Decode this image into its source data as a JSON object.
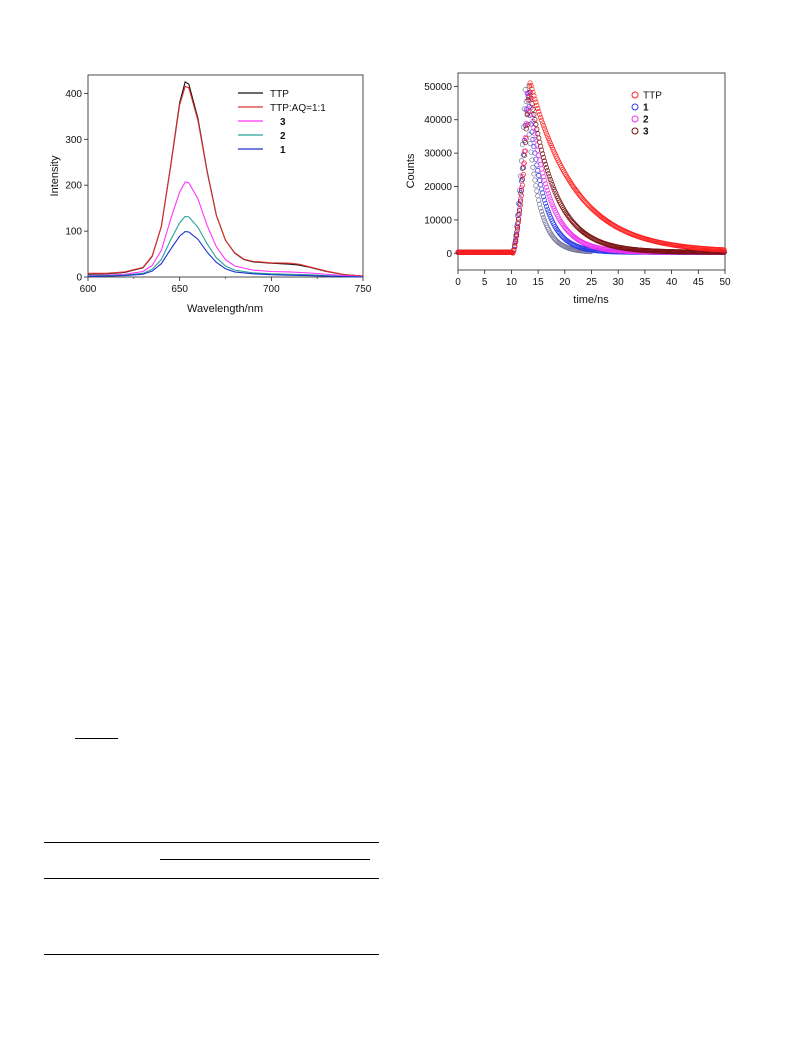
{
  "chart_data": [
    {
      "type": "line",
      "title": "",
      "xlabel": "Wavelength/nm",
      "ylabel": "Intensity",
      "xlim": [
        600,
        750
      ],
      "ylim": [
        0,
        440
      ],
      "xticks": [
        600,
        650,
        700,
        750
      ],
      "yticks": [
        0,
        100,
        200,
        300,
        400
      ],
      "grid": false,
      "legend_position": "top-right",
      "series": [
        {
          "name": "TTP",
          "color": "#111111",
          "x": [
            600,
            610,
            620,
            630,
            635,
            640,
            645,
            650,
            653,
            655,
            660,
            665,
            670,
            675,
            680,
            685,
            690,
            700,
            710,
            715,
            720,
            730,
            740,
            750
          ],
          "y": [
            6,
            7,
            10,
            20,
            45,
            110,
            240,
            380,
            425,
            420,
            345,
            230,
            135,
            80,
            52,
            38,
            33,
            30,
            28,
            26,
            22,
            12,
            5,
            2
          ]
        },
        {
          "name": "TTP:AQ=1:1",
          "color": "#e03030",
          "x": [
            600,
            610,
            620,
            630,
            635,
            640,
            645,
            650,
            653,
            655,
            660,
            665,
            670,
            675,
            680,
            685,
            690,
            700,
            710,
            715,
            720,
            730,
            740,
            750
          ],
          "y": [
            8,
            8,
            11,
            21,
            46,
            110,
            238,
            375,
            415,
            412,
            340,
            228,
            134,
            80,
            53,
            39,
            34,
            31,
            30,
            28,
            23,
            13,
            5,
            2
          ]
        },
        {
          "name": "3",
          "color": "#ff33ff",
          "x": [
            600,
            610,
            620,
            630,
            635,
            640,
            645,
            650,
            653,
            655,
            660,
            665,
            670,
            675,
            680,
            690,
            700,
            710,
            720,
            730,
            740,
            750
          ],
          "y": [
            3,
            4,
            6,
            12,
            25,
            58,
            125,
            185,
            207,
            205,
            170,
            112,
            66,
            38,
            24,
            15,
            12,
            11,
            9,
            6,
            3,
            1
          ]
        },
        {
          "name": "2",
          "color": "#2aa198",
          "x": [
            600,
            610,
            620,
            630,
            635,
            640,
            645,
            650,
            653,
            655,
            660,
            665,
            670,
            675,
            680,
            690,
            700,
            710,
            720,
            730,
            740,
            750
          ],
          "y": [
            2,
            3,
            4,
            8,
            17,
            38,
            80,
            118,
            132,
            131,
            108,
            72,
            42,
            24,
            15,
            9,
            7,
            6,
            5,
            3,
            1,
            0
          ]
        },
        {
          "name": "1",
          "color": "#1a33cc",
          "x": [
            600,
            610,
            620,
            630,
            635,
            640,
            645,
            650,
            653,
            655,
            660,
            665,
            670,
            675,
            680,
            690,
            700,
            710,
            720,
            730,
            740,
            750
          ],
          "y": [
            1,
            2,
            3,
            6,
            13,
            29,
            60,
            89,
            99,
            98,
            82,
            54,
            32,
            18,
            11,
            7,
            5,
            4,
            3,
            2,
            1,
            0
          ]
        }
      ]
    },
    {
      "type": "scatter",
      "title": "",
      "xlabel": "time/ns",
      "ylabel": "Counts",
      "xlim": [
        0,
        50
      ],
      "ylim": [
        -5000,
        54000
      ],
      "xticks": [
        0,
        5,
        10,
        15,
        20,
        25,
        30,
        35,
        40,
        45,
        50
      ],
      "yticks": [
        0,
        10000,
        20000,
        30000,
        40000,
        50000
      ],
      "grid": false,
      "legend_position": "top-right",
      "series": [
        {
          "name": "TTP",
          "color": "#ff2020",
          "tau": 8.5,
          "peak_time": 13.5,
          "peak": 51000
        },
        {
          "name": "1",
          "color": "#2a3ce8",
          "tau": 2.8,
          "peak_time": 13.0,
          "peak": 49000
        },
        {
          "name": "2",
          "color": "#ee33ee",
          "tau": 3.6,
          "peak_time": 13.2,
          "peak": 49500
        },
        {
          "name": "3",
          "color": "#7a1010",
          "tau": 4.8,
          "peak_time": 13.3,
          "peak": 50000
        },
        {
          "name": "",
          "color": "#777799",
          "tau": 2.2,
          "peak_time": 12.6,
          "peak": 49000
        }
      ]
    }
  ]
}
